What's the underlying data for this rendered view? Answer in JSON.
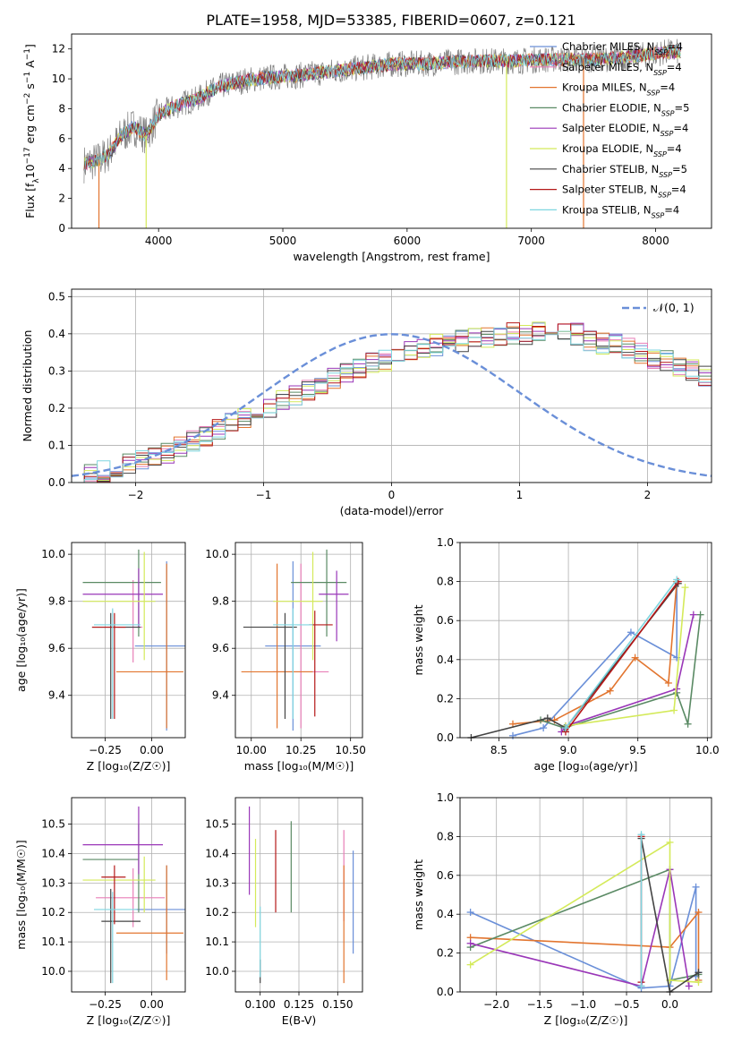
{
  "figure": {
    "title": "PLATE=1958, MJD=53385, FIBERID=0607, z=0.121"
  },
  "colors": {
    "Chabrier MILES": "#6a8fd8",
    "Salpeter MILES": "#e87fb7",
    "Kroupa MILES": "#e2752f",
    "Chabrier ELODIE": "#5a8a64",
    "Salpeter ELODIE": "#9a37b8",
    "Kroupa ELODIE": "#d4ea5a",
    "Chabrier STELIB": "#444444",
    "Salpeter STELIB": "#b51818",
    "Kroupa STELIB": "#7fd6e0"
  },
  "chart_data": [
    {
      "id": "spectrum",
      "type": "line",
      "title": "PLATE=1958, MJD=53385, FIBERID=0607, z=0.121",
      "xlabel": "wavelength [Angstrom, rest frame]",
      "ylabel": "Flux [f_λ 10^-17 erg cm^-2 s^-1 A^-1]",
      "xlim": [
        3300,
        8450
      ],
      "ylim": [
        0,
        13
      ],
      "xticks": [
        4000,
        5000,
        6000,
        7000,
        8000
      ],
      "yticks": [
        0,
        2,
        4,
        6,
        8,
        10,
        12
      ],
      "grid": false,
      "legend_position": "right",
      "legend": [
        {
          "name": "Chabrier MILES",
          "nssp": "4"
        },
        {
          "name": "Salpeter MILES",
          "nssp": "4"
        },
        {
          "name": "Kroupa MILES",
          "nssp": "4"
        },
        {
          "name": "Chabrier ELODIE",
          "nssp": "5"
        },
        {
          "name": "Salpeter ELODIE",
          "nssp": "4"
        },
        {
          "name": "Kroupa ELODIE",
          "nssp": "4"
        },
        {
          "name": "Chabrier STELIB",
          "nssp": "5"
        },
        {
          "name": "Salpeter STELIB",
          "nssp": "4"
        },
        {
          "name": "Kroupa STELIB",
          "nssp": "4"
        }
      ],
      "continuum": {
        "x": [
          3400,
          3500,
          3600,
          3700,
          3800,
          3900,
          4000,
          4100,
          4200,
          4300,
          4400,
          4500,
          4700,
          4900,
          5100,
          5300,
          5500,
          5700,
          5900,
          6100,
          6300,
          6500,
          6700,
          6900,
          7100,
          7300,
          7500,
          7700,
          7900,
          8100,
          8200
        ],
        "y": [
          4.3,
          4.5,
          5.0,
          6.2,
          6.8,
          6.2,
          7.6,
          8.0,
          8.4,
          8.6,
          9.1,
          9.5,
          9.9,
          10.1,
          10.2,
          10.4,
          10.6,
          10.8,
          11.0,
          11.0,
          11.1,
          11.2,
          11.2,
          11.2,
          11.3,
          11.3,
          11.3,
          11.4,
          11.6,
          11.8,
          11.8
        ]
      },
      "data_spikes_down": [
        {
          "x": 3520,
          "y": 0
        },
        {
          "x": 3900,
          "y": 0
        },
        {
          "x": 6800,
          "y": 0
        },
        {
          "x": 7420,
          "y": 0
        }
      ]
    },
    {
      "id": "residuals",
      "type": "histogram",
      "xlabel": "(data-model)/error",
      "ylabel": "Normed distribution",
      "xlim": [
        -2.5,
        2.5
      ],
      "ylim": [
        0,
        0.52
      ],
      "xticks": [
        -2,
        -1,
        0,
        1,
        2
      ],
      "yticks": [
        0.0,
        0.1,
        0.2,
        0.3,
        0.4,
        0.5
      ],
      "grid": true,
      "legend": [
        {
          "name": "𝒩(0, 1)",
          "style": "dashed"
        }
      ],
      "legend_position": "top-right",
      "bin_width": 0.1,
      "bin_start": -2.5,
      "base_values": [
        0.02,
        0.025,
        0.03,
        0.04,
        0.05,
        0.06,
        0.065,
        0.08,
        0.1,
        0.11,
        0.125,
        0.14,
        0.16,
        0.175,
        0.19,
        0.2,
        0.22,
        0.235,
        0.25,
        0.265,
        0.28,
        0.3,
        0.31,
        0.32,
        0.33,
        0.345,
        0.355,
        0.365,
        0.37,
        0.375,
        0.38,
        0.385,
        0.39,
        0.395,
        0.4,
        0.4,
        0.405,
        0.41,
        0.41,
        0.4,
        0.38,
        0.375,
        0.37,
        0.36,
        0.35,
        0.335,
        0.33,
        0.315,
        0.3,
        0.285,
        0.27,
        0.25,
        0.235,
        0.22,
        0.2,
        0.185,
        0.165,
        0.15,
        0.13,
        0.115,
        0.1,
        0.085,
        0.07,
        0.06,
        0.05,
        0.045,
        0.04,
        0.035,
        0.03,
        0.025
      ],
      "normal_curve": {
        "mu": 0,
        "sigma": 1
      }
    },
    {
      "id": "age-vs-Z",
      "type": "errorbar",
      "xlabel": "Z [log10(Z/Z☉)]",
      "ylabel": "age  [log10(age/yr)]",
      "xlim": [
        -0.43,
        0.18
      ],
      "ylim": [
        9.22,
        10.05
      ],
      "xticks": [
        -0.25,
        0.0
      ],
      "yticks": [
        9.4,
        9.6,
        9.8,
        10.0
      ],
      "grid": true,
      "points": [
        {
          "series": "Chabrier MILES",
          "x": 0.08,
          "y": 9.61,
          "xerr": [
            0.17,
            0.1
          ],
          "yerr": [
            0.36,
            0.36
          ]
        },
        {
          "series": "Salpeter MILES",
          "x": -0.1,
          "y": 9.69,
          "xerr": [
            0.08,
            0.05
          ],
          "yerr": [
            0.15,
            0.2
          ]
        },
        {
          "series": "Kroupa MILES",
          "x": 0.08,
          "y": 9.5,
          "xerr": [
            0.27,
            0.09
          ],
          "yerr": [
            0.24,
            0.46
          ]
        },
        {
          "series": "Chabrier ELODIE",
          "x": -0.07,
          "y": 9.88,
          "xerr": [
            0.3,
            0.12
          ],
          "yerr": [
            0.23,
            0.14
          ]
        },
        {
          "series": "Salpeter ELODIE",
          "x": -0.07,
          "y": 9.83,
          "xerr": [
            0.3,
            0.13
          ],
          "yerr": [
            0.14,
            0.11
          ]
        },
        {
          "series": "Kroupa ELODIE",
          "x": -0.04,
          "y": 9.8,
          "xerr": [
            0.33,
            0.06
          ],
          "yerr": [
            0.25,
            0.21
          ]
        },
        {
          "series": "Chabrier STELIB",
          "x": -0.22,
          "y": 9.69,
          "xerr": [
            0.1,
            0.16
          ],
          "yerr": [
            0.39,
            0.06
          ]
        },
        {
          "series": "Salpeter STELIB",
          "x": -0.2,
          "y": 9.69,
          "xerr": [
            0.12,
            0.06
          ],
          "yerr": [
            0.39,
            0.06
          ]
        },
        {
          "series": "Kroupa STELIB",
          "x": -0.21,
          "y": 9.7,
          "xerr": [
            0.1,
            0.15
          ],
          "yerr": [
            0.4,
            0.07
          ]
        }
      ]
    },
    {
      "id": "age-vs-mass",
      "type": "errorbar",
      "xlabel": "mass [log10(M/M☉)]",
      "ylabel": "",
      "xlim": [
        9.92,
        10.56
      ],
      "ylim": [
        9.22,
        10.05
      ],
      "xticks": [
        10.0,
        10.25,
        10.5
      ],
      "yticks": [
        9.4,
        9.6,
        9.8,
        10.0
      ],
      "grid": true,
      "points": [
        {
          "series": "Chabrier MILES",
          "x": 10.21,
          "y": 9.61,
          "xerr": [
            0.14,
            0.14
          ],
          "yerr": [
            0.36,
            0.36
          ]
        },
        {
          "series": "Salpeter MILES",
          "x": 10.25,
          "y": 9.5,
          "xerr": [
            0.14,
            0.14
          ],
          "yerr": [
            0.24,
            0.46
          ]
        },
        {
          "series": "Kroupa MILES",
          "x": 10.13,
          "y": 9.5,
          "xerr": [
            0.18,
            0.18
          ],
          "yerr": [
            0.24,
            0.46
          ]
        },
        {
          "series": "Chabrier ELODIE",
          "x": 10.38,
          "y": 9.88,
          "xerr": [
            0.18,
            0.1
          ],
          "yerr": [
            0.23,
            0.14
          ]
        },
        {
          "series": "Salpeter ELODIE",
          "x": 10.43,
          "y": 9.83,
          "xerr": [
            0.09,
            0.06
          ],
          "yerr": [
            0.2,
            0.1
          ]
        },
        {
          "series": "Kroupa ELODIE",
          "x": 10.31,
          "y": 9.8,
          "xerr": [
            0.2,
            0.05
          ],
          "yerr": [
            0.25,
            0.21
          ]
        },
        {
          "series": "Chabrier STELIB",
          "x": 10.17,
          "y": 9.69,
          "xerr": [
            0.21,
            0.06
          ],
          "yerr": [
            0.39,
            0.06
          ]
        },
        {
          "series": "Salpeter STELIB",
          "x": 10.32,
          "y": 9.7,
          "xerr": [
            0.03,
            0.09
          ],
          "yerr": [
            0.39,
            0.06
          ]
        },
        {
          "series": "Kroupa STELIB",
          "x": 10.21,
          "y": 9.7,
          "xerr": [
            0.1,
            0.1
          ],
          "yerr": [
            0.4,
            0.07
          ]
        }
      ]
    },
    {
      "id": "weight-vs-age",
      "type": "line",
      "xlabel": "age  [log10(age/yr)]",
      "ylabel": "mass weight",
      "xlim": [
        8.22,
        10.03
      ],
      "ylim": [
        0,
        1.0
      ],
      "xticks": [
        8.5,
        9.0,
        9.5,
        10.0
      ],
      "yticks": [
        0.0,
        0.2,
        0.4,
        0.6,
        0.8,
        1.0
      ],
      "grid": true,
      "series": [
        {
          "name": "Chabrier MILES",
          "x": [
            8.6,
            8.82,
            9.45,
            9.78,
            9.78
          ],
          "y": [
            0.01,
            0.05,
            0.54,
            0.41,
            0.8
          ]
        },
        {
          "name": "Kroupa MILES",
          "x": [
            8.6,
            8.9,
            9.3,
            9.48,
            9.72,
            9.78
          ],
          "y": [
            0.07,
            0.09,
            0.24,
            0.41,
            0.28,
            0.8
          ]
        },
        {
          "name": "Chabrier ELODIE",
          "x": [
            8.8,
            8.97,
            9.78,
            9.86,
            9.95
          ],
          "y": [
            0.09,
            0.05,
            0.23,
            0.07,
            0.63
          ]
        },
        {
          "name": "Salpeter ELODIE",
          "x": [
            8.95,
            8.98,
            9.78,
            9.9
          ],
          "y": [
            0.03,
            0.06,
            0.25,
            0.63
          ]
        },
        {
          "name": "Kroupa ELODIE",
          "x": [
            8.98,
            9.76,
            9.84
          ],
          "y": [
            0.06,
            0.14,
            0.77
          ]
        },
        {
          "name": "Chabrier STELIB",
          "x": [
            8.3,
            8.85,
            8.98,
            9.79
          ],
          "y": [
            0.0,
            0.1,
            0.05,
            0.79
          ]
        },
        {
          "name": "Salpeter STELIB",
          "x": [
            8.98,
            9.79
          ],
          "y": [
            0.03,
            0.8
          ]
        },
        {
          "name": "Kroupa STELIB",
          "x": [
            8.98,
            9.78
          ],
          "y": [
            0.05,
            0.81
          ]
        }
      ]
    },
    {
      "id": "mass-vs-Z",
      "type": "errorbar",
      "xlabel": "Z [log10(Z/Z☉)]",
      "ylabel": "mass [log10(M/M☉)]",
      "xlim": [
        -0.43,
        0.18
      ],
      "ylim": [
        9.93,
        10.59
      ],
      "xticks": [
        -0.25,
        0.0
      ],
      "yticks": [
        10.0,
        10.1,
        10.2,
        10.3,
        10.4,
        10.5
      ],
      "grid": true,
      "points": [
        {
          "series": "Chabrier MILES",
          "x": 0.08,
          "y": 10.21,
          "xerr": [
            0.17,
            0.1
          ],
          "yerr": [
            0.15,
            0.15
          ]
        },
        {
          "series": "Salpeter MILES",
          "x": -0.1,
          "y": 10.25,
          "xerr": [
            0.2,
            0.17
          ],
          "yerr": [
            0.1,
            0.1
          ]
        },
        {
          "series": "Kroupa MILES",
          "x": 0.08,
          "y": 10.13,
          "xerr": [
            0.27,
            0.09
          ],
          "yerr": [
            0.16,
            0.23
          ]
        },
        {
          "series": "Chabrier ELODIE",
          "x": -0.07,
          "y": 10.38,
          "xerr": [
            0.3,
            0.0
          ],
          "yerr": [
            0.18,
            0.12
          ]
        },
        {
          "series": "Salpeter ELODIE",
          "x": -0.07,
          "y": 10.43,
          "xerr": [
            0.3,
            0.13
          ],
          "yerr": [
            0.1,
            0.13
          ]
        },
        {
          "series": "Kroupa ELODIE",
          "x": -0.04,
          "y": 10.31,
          "xerr": [
            0.33,
            0.06
          ],
          "yerr": [
            0.11,
            0.08
          ]
        },
        {
          "series": "Chabrier STELIB",
          "x": -0.22,
          "y": 10.17,
          "xerr": [
            0.05,
            0.16
          ],
          "yerr": [
            0.21,
            0.11
          ]
        },
        {
          "series": "Salpeter STELIB",
          "x": -0.2,
          "y": 10.32,
          "xerr": [
            0.07,
            0.06
          ],
          "yerr": [
            0.16,
            0.04
          ]
        },
        {
          "series": "Kroupa STELIB",
          "x": -0.21,
          "y": 10.21,
          "xerr": [
            0.1,
            0.13
          ],
          "yerr": [
            0.25,
            0.06
          ]
        }
      ]
    },
    {
      "id": "mass-vs-EBV",
      "type": "errorbar",
      "xlabel": "E(B-V)",
      "ylabel": "",
      "xlim": [
        0.084,
        0.166
      ],
      "ylim": [
        9.93,
        10.59
      ],
      "xticks": [
        0.1,
        0.125,
        0.15
      ],
      "yticks": [
        10.0,
        10.1,
        10.2,
        10.3,
        10.4,
        10.5
      ],
      "grid": true,
      "points": [
        {
          "series": "Chabrier MILES",
          "x": 0.16,
          "y": 10.24,
          "yerr": [
            0.18,
            0.17
          ]
        },
        {
          "series": "Salpeter MILES",
          "x": 0.154,
          "y": 10.31,
          "yerr": [
            0.14,
            0.17
          ]
        },
        {
          "series": "Kroupa MILES",
          "x": 0.154,
          "y": 10.17,
          "yerr": [
            0.21,
            0.19
          ]
        },
        {
          "series": "Chabrier ELODIE",
          "x": 0.12,
          "y": 10.37,
          "yerr": [
            0.17,
            0.14
          ]
        },
        {
          "series": "Salpeter ELODIE",
          "x": 0.093,
          "y": 10.43,
          "yerr": [
            0.17,
            0.13
          ]
        },
        {
          "series": "Kroupa ELODIE",
          "x": 0.097,
          "y": 10.3,
          "yerr": [
            0.15,
            0.15
          ]
        },
        {
          "series": "Chabrier STELIB",
          "x": 0.1,
          "y": 10.0,
          "yerr": [
            0.04,
            0.04
          ]
        },
        {
          "series": "Salpeter STELIB",
          "x": 0.11,
          "y": 10.34,
          "yerr": [
            0.14,
            0.14
          ]
        },
        {
          "series": "Kroupa STELIB",
          "x": 0.1,
          "y": 10.1,
          "yerr": [
            0.12,
            0.12
          ]
        }
      ]
    },
    {
      "id": "weight-vs-Z",
      "type": "line",
      "xlabel": "Z [log10(Z/Z☉)]",
      "ylabel": "mass weight",
      "xlim": [
        -2.42,
        0.48
      ],
      "ylim": [
        0,
        1.0
      ],
      "xticks": [
        -2.0,
        -1.5,
        -1.0,
        -0.5,
        0.0
      ],
      "yticks": [
        0.0,
        0.2,
        0.4,
        0.6,
        0.8,
        1.0
      ],
      "grid": true,
      "series": [
        {
          "name": "Chabrier MILES",
          "x": [
            -2.3,
            -0.33,
            0.0,
            0.3,
            0.3,
            0.33
          ],
          "y": [
            0.41,
            0.02,
            0.03,
            0.54,
            0.08,
            0.1
          ]
        },
        {
          "name": "Kroupa MILES",
          "x": [
            -2.3,
            0.0,
            0.33,
            0.33
          ],
          "y": [
            0.28,
            0.23,
            0.41,
            0.06
          ]
        },
        {
          "name": "Chabrier ELODIE",
          "x": [
            -2.3,
            0.0,
            0.0,
            0.33
          ],
          "y": [
            0.23,
            0.63,
            0.06,
            0.09
          ]
        },
        {
          "name": "Salpeter ELODIE",
          "x": [
            -2.3,
            -0.33,
            0.0,
            0.22
          ],
          "y": [
            0.25,
            0.03,
            0.63,
            0.03
          ]
        },
        {
          "name": "Kroupa ELODIE",
          "x": [
            -2.3,
            0.0,
            0.0,
            0.33
          ],
          "y": [
            0.14,
            0.77,
            0.06,
            0.05
          ]
        },
        {
          "name": "Chabrier STELIB",
          "x": [
            -0.33,
            0.0,
            0.33
          ],
          "y": [
            0.79,
            0.0,
            0.1
          ]
        },
        {
          "name": "Salpeter STELIB",
          "x": [
            -0.33,
            -0.33
          ],
          "y": [
            0.8,
            0.05
          ]
        },
        {
          "name": "Kroupa STELIB",
          "x": [
            -0.33,
            -0.33
          ],
          "y": [
            0.81,
            0.03
          ]
        }
      ]
    }
  ]
}
